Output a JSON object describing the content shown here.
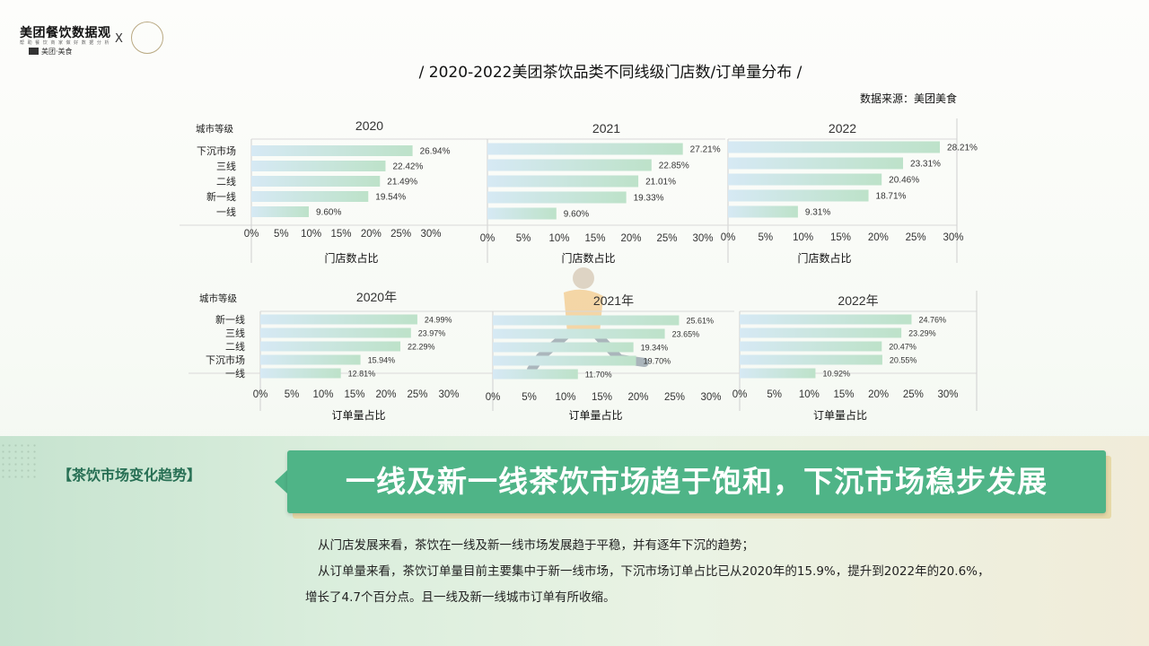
{
  "logo": {
    "brand": "美团餐饮数据观",
    "tagline": "帮 助 餐 饮 商 家 做 好 数 据 分 析",
    "mt": "美团·美食",
    "x": "X",
    "seal": "咖门"
  },
  "title": "/ 2020-2022美团茶饮品类不同线级门店数/订单量分布 /",
  "source": "数据来源：美团美食",
  "colors": {
    "bar_start": "#d2e7f3",
    "bar_end": "#bfe2c8",
    "accent": "#4fb487",
    "tag": "#276f54"
  },
  "chart_data": [
    {
      "type": "bar",
      "orientation": "horizontal",
      "title": "2020",
      "xlabel": "门店数占比",
      "ylabel": "城市等级",
      "xlim": [
        0,
        30
      ],
      "xticks": [
        "0%",
        "5%",
        "10%",
        "15%",
        "20%",
        "25%",
        "30%"
      ],
      "categories": [
        "下沉市场",
        "三线",
        "二线",
        "新一线",
        "一线"
      ],
      "values": [
        26.94,
        22.42,
        21.49,
        19.54,
        9.6
      ],
      "labels": [
        "26.94%",
        "22.42%",
        "21.49%",
        "19.54%",
        "9.60%"
      ]
    },
    {
      "type": "bar",
      "orientation": "horizontal",
      "title": "2021",
      "xlabel": "门店数占比",
      "xlim": [
        0,
        30
      ],
      "xticks": [
        "0%",
        "5%",
        "10%",
        "15%",
        "20%",
        "25%",
        "30%"
      ],
      "categories": [
        "下沉市场",
        "三线",
        "二线",
        "新一线",
        "一线"
      ],
      "values": [
        27.21,
        22.85,
        21.01,
        19.33,
        9.6
      ],
      "labels": [
        "27.21%",
        "22.85%",
        "21.01%",
        "19.33%",
        "9.60%"
      ]
    },
    {
      "type": "bar",
      "orientation": "horizontal",
      "title": "2022",
      "xlabel": "门店数占比",
      "xlim": [
        0,
        30
      ],
      "xticks": [
        "0%",
        "5%",
        "10%",
        "15%",
        "20%",
        "25%",
        "30%"
      ],
      "categories": [
        "下沉市场",
        "三线",
        "二线",
        "新一线",
        "一线"
      ],
      "values": [
        28.21,
        23.31,
        20.46,
        18.71,
        9.31
      ],
      "labels": [
        "28.21%",
        "23.31%",
        "20.46%",
        "18.71%",
        "9.31%"
      ]
    },
    {
      "type": "bar",
      "orientation": "horizontal",
      "title": "2020年",
      "xlabel": "订单量占比",
      "ylabel": "城市等级",
      "xlim": [
        0,
        30
      ],
      "xticks": [
        "0%",
        "5%",
        "10%",
        "15%",
        "20%",
        "25%",
        "30%"
      ],
      "categories": [
        "新一线",
        "三线",
        "二线",
        "下沉市场",
        "一线"
      ],
      "values": [
        24.99,
        23.97,
        22.29,
        15.94,
        12.81
      ],
      "labels": [
        "24.99%",
        "23.97%",
        "22.29%",
        "15.94%",
        "12.81%"
      ]
    },
    {
      "type": "bar",
      "orientation": "horizontal",
      "title": "2021年",
      "xlabel": "订单量占比",
      "xlim": [
        0,
        30
      ],
      "xticks": [
        "0%",
        "5%",
        "10%",
        "15%",
        "20%",
        "25%",
        "30%"
      ],
      "categories": [
        "新一线",
        "三线",
        "二线",
        "下沉市场",
        "一线"
      ],
      "values": [
        25.61,
        23.65,
        19.34,
        19.7,
        11.7
      ],
      "labels": [
        "25.61%",
        "23.65%",
        "19.34%",
        "19.70%",
        "11.70%"
      ]
    },
    {
      "type": "bar",
      "orientation": "horizontal",
      "title": "2022年",
      "xlabel": "订单量占比",
      "xlim": [
        0,
        30
      ],
      "xticks": [
        "0%",
        "5%",
        "10%",
        "15%",
        "20%",
        "25%",
        "30%"
      ],
      "categories": [
        "新一线",
        "三线",
        "二线",
        "下沉市场",
        "一线"
      ],
      "values": [
        24.76,
        23.29,
        20.47,
        20.55,
        10.92
      ],
      "labels": [
        "24.76%",
        "23.29%",
        "20.47%",
        "20.55%",
        "10.92%"
      ]
    }
  ],
  "section_tag": "【茶饮市场变化趋势】",
  "headline": "一线及新一线茶饮市场趋于饱和，下沉市场稳步发展",
  "body": [
    "从门店发展来看，茶饮在一线及新一线市场发展趋于平稳，并有逐年下沉的趋势；",
    "从订单量来看，茶饮订单量目前主要集中于新一线市场，下沉市场订单占比已从2020年的15.9%，提升到2022年的20.6%，",
    "增长了4.7个百分点。且一线及新一线城市订单有所收缩。"
  ]
}
